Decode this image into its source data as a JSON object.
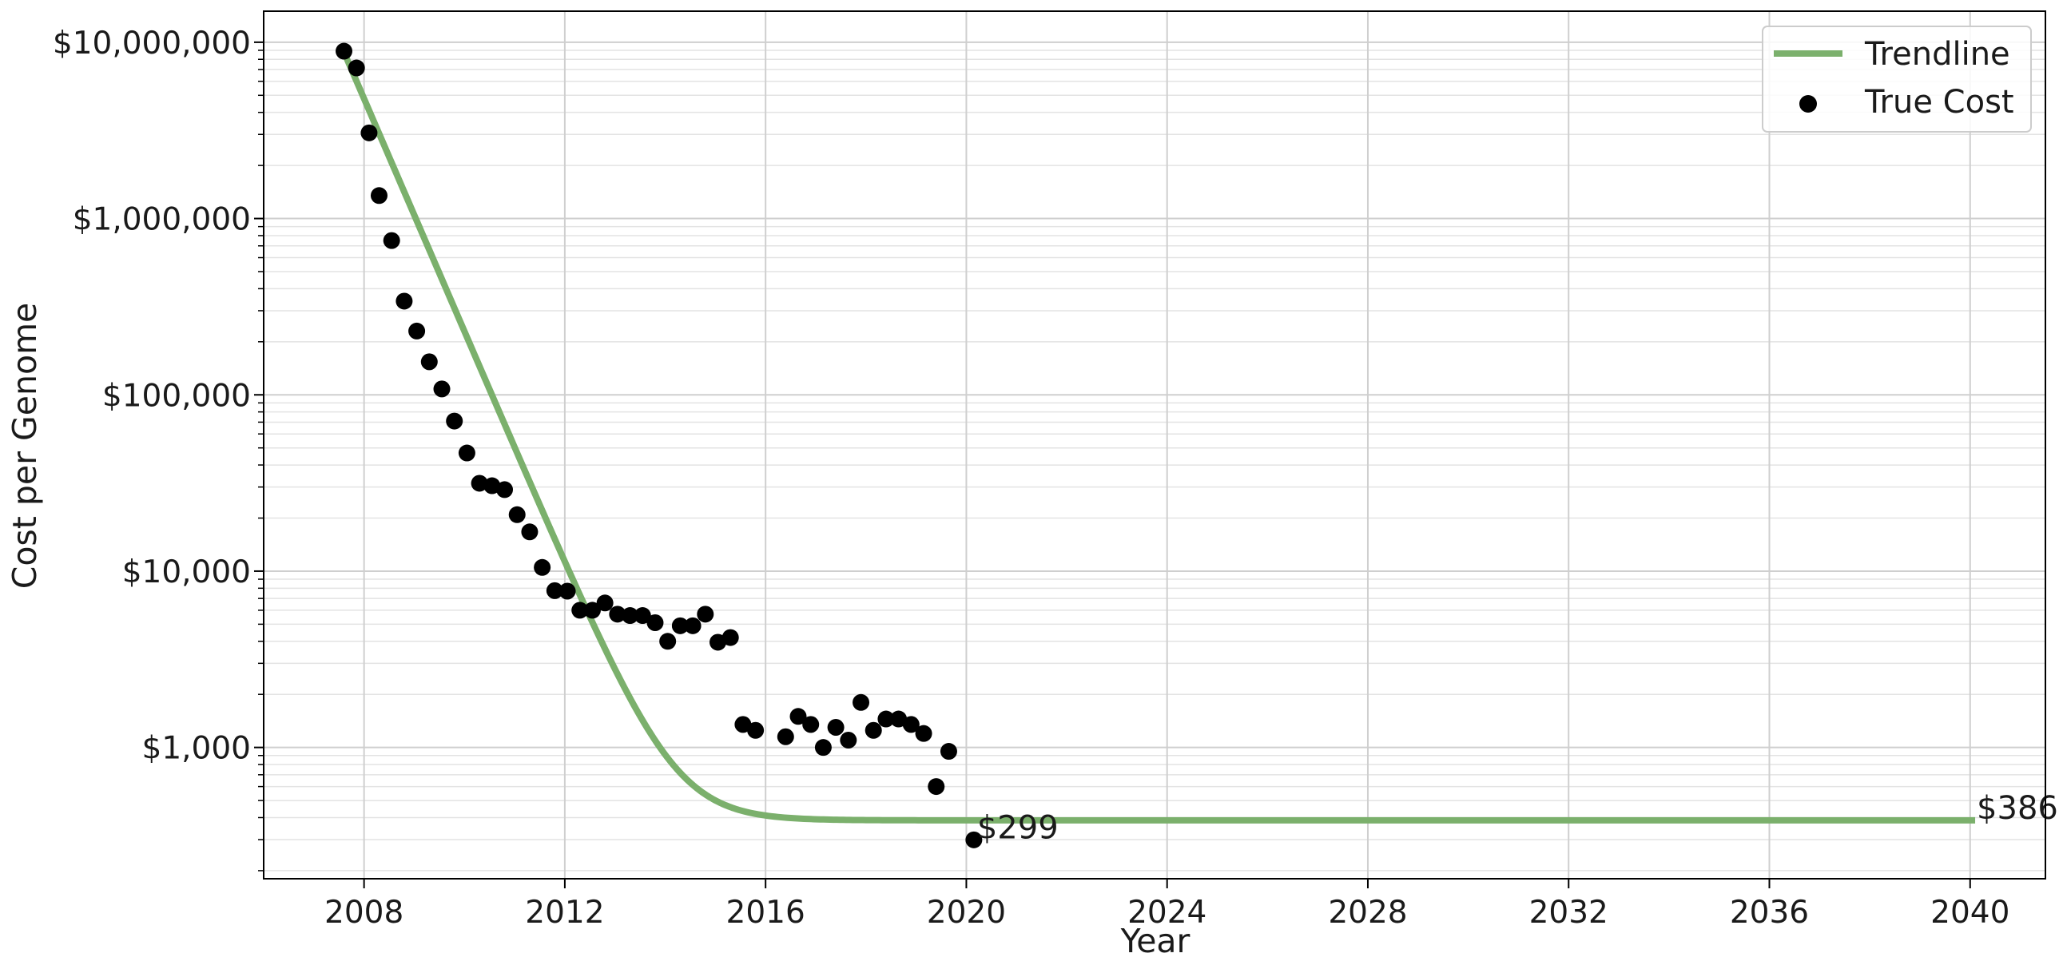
{
  "chart_data": {
    "type": "scatter",
    "xlabel": "Year",
    "ylabel": "Cost per Genome",
    "xlim": [
      2006,
      2041.5
    ],
    "ylim": [
      180,
      15000000
    ],
    "y_scale": "log",
    "x_ticks": [
      2008,
      2012,
      2016,
      2020,
      2024,
      2028,
      2032,
      2036,
      2040
    ],
    "x_tick_labels": [
      "2008",
      "2012",
      "2016",
      "2020",
      "2024",
      "2028",
      "2032",
      "2036",
      "2040"
    ],
    "y_ticks": [
      1000,
      10000,
      100000,
      1000000,
      10000000
    ],
    "y_tick_labels": [
      "$1,000",
      "$10,000",
      "$100,000",
      "$1,000,000",
      "$10,000,000"
    ],
    "grid": true,
    "legend_position": "top-right",
    "colors": {
      "trendline": "#7bb06c",
      "true_cost": "#000000"
    },
    "series": [
      {
        "name": "Trendline",
        "type": "line",
        "model": "exponential decay toward a floor",
        "formula": "386 + 8790000 * exp(-1.52 * (year - 2007.6))",
        "x_range": [
          2007.6,
          2040.1
        ],
        "end_label": "$386"
      },
      {
        "name": "True Cost",
        "type": "scatter",
        "x": [
          2007.6,
          2007.85,
          2008.1,
          2008.3,
          2008.55,
          2008.8,
          2009.05,
          2009.3,
          2009.55,
          2009.8,
          2010.05,
          2010.3,
          2010.55,
          2010.8,
          2011.05,
          2011.3,
          2011.55,
          2011.8,
          2012.05,
          2012.3,
          2012.55,
          2012.8,
          2013.05,
          2013.3,
          2013.55,
          2013.8,
          2014.05,
          2014.3,
          2014.55,
          2014.8,
          2015.05,
          2015.3,
          2015.55,
          2015.8,
          2016.4,
          2016.65,
          2016.9,
          2017.15,
          2017.4,
          2017.65,
          2017.9,
          2018.15,
          2018.4,
          2018.65,
          2018.9,
          2019.15,
          2019.4,
          2019.65,
          2020.15
        ],
        "y": [
          8900000,
          7150000,
          3060000,
          1350000,
          750000,
          340000,
          230000,
          154000,
          108000,
          71000,
          46800,
          31500,
          30500,
          29000,
          20900,
          16700,
          10500,
          7750,
          7700,
          6000,
          6000,
          6600,
          5700,
          5600,
          5600,
          5100,
          4000,
          4900,
          4900,
          5700,
          3950,
          4200,
          1350,
          1250,
          1150,
          1500,
          1350,
          1000,
          1300,
          1100,
          1800,
          1250,
          1450,
          1450,
          1350,
          1200,
          600,
          950,
          299
        ],
        "annotations": [
          {
            "x": 2020.15,
            "y": 299,
            "text": "$299"
          }
        ]
      }
    ]
  }
}
